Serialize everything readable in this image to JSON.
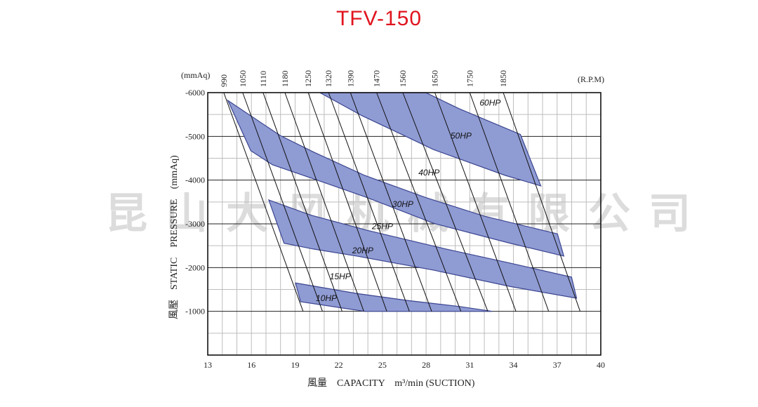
{
  "title": "TFV-150",
  "watermark": "昆山大风机械有限公司",
  "colors": {
    "title": "#e0141e",
    "band_fill": "#8f9bd3",
    "band_stroke": "#3b4590"
  },
  "chart_data": {
    "type": "area",
    "title": "TFV-150",
    "xlabel": "風量　CAPACITY　m³/min (SUCTION)",
    "ylabel": "風壓　STATIC　PRESSURE　(mmAq)",
    "y_unit_label": "(mmAq)",
    "rpm_unit_label": "(R.P.M)",
    "xlim": [
      13,
      40
    ],
    "ylim": [
      0,
      -6000
    ],
    "grid": true,
    "x_ticks": [
      13,
      16,
      19,
      22,
      25,
      28,
      31,
      34,
      37,
      40
    ],
    "y_ticks": [
      {
        "value": -1000,
        "label": "-1000"
      },
      {
        "value": -2000,
        "label": "-2000"
      },
      {
        "value": -3000,
        "label": "-3000"
      },
      {
        "value": -4000,
        "label": "-4000"
      },
      {
        "value": -5000,
        "label": "-5000"
      },
      {
        "value": -6000,
        "label": "-6000"
      }
    ],
    "rpm_lines": [
      {
        "rpm": "990",
        "top": [
          14.1,
          -6000
        ],
        "bottom": [
          19.55,
          -1000
        ]
      },
      {
        "rpm": "1050",
        "top": [
          15.4,
          -6000
        ],
        "bottom": [
          20.88,
          -1000
        ]
      },
      {
        "rpm": "1110",
        "top": [
          16.8,
          -6000
        ],
        "bottom": [
          22.23,
          -1000
        ]
      },
      {
        "rpm": "1180",
        "top": [
          18.3,
          -6000
        ],
        "bottom": [
          23.72,
          -1000
        ]
      },
      {
        "rpm": "1250",
        "top": [
          19.9,
          -6000
        ],
        "bottom": [
          25.3,
          -1000
        ]
      },
      {
        "rpm": "1320",
        "top": [
          21.3,
          -6000
        ],
        "bottom": [
          26.85,
          -1000
        ]
      },
      {
        "rpm": "1390",
        "top": [
          22.8,
          -6000
        ],
        "bottom": [
          28.38,
          -1000
        ]
      },
      {
        "rpm": "1470",
        "top": [
          24.6,
          -6000
        ],
        "bottom": [
          30.39,
          -1000
        ]
      },
      {
        "rpm": "1560",
        "top": [
          26.4,
          -6000
        ],
        "bottom": [
          32.24,
          -1000
        ]
      },
      {
        "rpm": "1650",
        "top": [
          28.6,
          -6000
        ],
        "bottom": [
          34.17,
          -1000
        ]
      },
      {
        "rpm": "1750",
        "top": [
          31.0,
          -6000
        ],
        "bottom": [
          36.42,
          -1000
        ]
      },
      {
        "rpm": "1850",
        "top": [
          33.3,
          -6000
        ],
        "bottom": [
          38.58,
          -1000
        ]
      }
    ],
    "bands": [
      {
        "points": [
          [
            20.7,
            -6000
          ],
          [
            27.98,
            -6000
          ],
          [
            30.26,
            -5634
          ],
          [
            34.48,
            -5045
          ],
          [
            35.88,
            -3868
          ],
          [
            33.42,
            -4109
          ],
          [
            28.51,
            -4698
          ],
          [
            26.49,
            -5019
          ],
          [
            23.59,
            -5473
          ]
        ]
      },
      {
        "points": [
          [
            14.38,
            -5821
          ],
          [
            17.98,
            -5019
          ],
          [
            20.26,
            -4644
          ],
          [
            23.77,
            -4109
          ],
          [
            27.98,
            -3601
          ],
          [
            32.02,
            -3173
          ],
          [
            37.02,
            -2772
          ],
          [
            37.46,
            -2263
          ],
          [
            33.77,
            -2557
          ],
          [
            28.51,
            -3013
          ],
          [
            23.95,
            -3601
          ],
          [
            20.26,
            -4029
          ],
          [
            17.45,
            -4350
          ],
          [
            15.96,
            -4671
          ]
        ]
      },
      {
        "points": [
          [
            17.19,
            -3547
          ],
          [
            20.08,
            -3199
          ],
          [
            23.95,
            -2852
          ],
          [
            29.38,
            -2424
          ],
          [
            33.77,
            -2103
          ],
          [
            37.99,
            -1782
          ],
          [
            38.34,
            -1300
          ],
          [
            33.77,
            -1568
          ],
          [
            28.51,
            -1942
          ],
          [
            23.24,
            -2263
          ],
          [
            20.26,
            -2424
          ],
          [
            18.24,
            -2557
          ]
        ]
      },
      {
        "points": [
          [
            19.03,
            -1648
          ],
          [
            23.24,
            -1408
          ],
          [
            26.75,
            -1247
          ],
          [
            30.26,
            -1112
          ],
          [
            32.55,
            -1000
          ],
          [
            23.77,
            -1000
          ],
          [
            19.38,
            -1220
          ]
        ]
      }
    ],
    "hp_labels": [
      {
        "text": "60HP",
        "x": 32.4,
        "y": -5770
      },
      {
        "text": "50HP",
        "x": 30.4,
        "y": -5010
      },
      {
        "text": "40HP",
        "x": 28.2,
        "y": -4170
      },
      {
        "text": "30HP",
        "x": 26.4,
        "y": -3450
      },
      {
        "text": "25HP",
        "x": 25.0,
        "y": -2940
      },
      {
        "text": "20HP",
        "x": 23.65,
        "y": -2390
      },
      {
        "text": "15HP",
        "x": 22.1,
        "y": -1800
      },
      {
        "text": "10HP",
        "x": 21.15,
        "y": -1300
      }
    ]
  }
}
